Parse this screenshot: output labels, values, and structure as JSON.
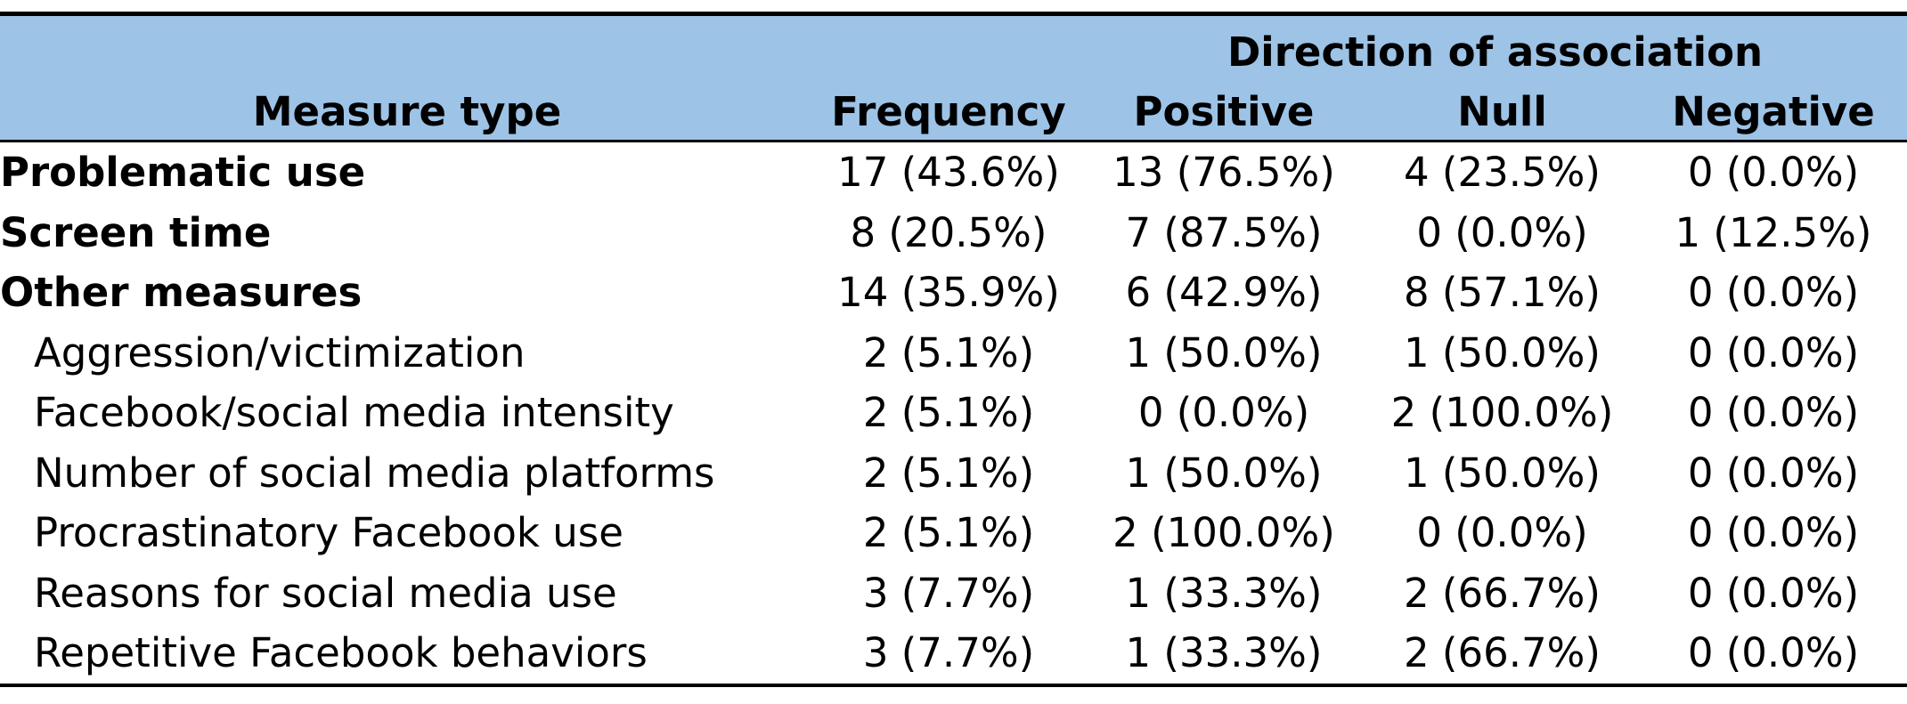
{
  "header": {
    "group_label": "Direction of association",
    "columns": [
      "Measure type",
      "Frequency",
      "Positive",
      "Null",
      "Negative"
    ]
  },
  "rows": [
    {
      "label": "Problematic use",
      "frequency": "17 (43.6%)",
      "positive": "13 (76.5%)",
      "null": "4 (23.5%)",
      "negative": "0 (0.0%)",
      "bold": true
    },
    {
      "label": "Screen time",
      "frequency": "8 (20.5%)",
      "positive": "7 (87.5%)",
      "null": "0 (0.0%)",
      "negative": "1 (12.5%)",
      "bold": true
    },
    {
      "label": "Other measures",
      "frequency": "14 (35.9%)",
      "positive": "6 (42.9%)",
      "null": "8 (57.1%)",
      "negative": "0 (0.0%)",
      "bold": true
    },
    {
      "label": "Aggression/victimization",
      "frequency": "2 (5.1%)",
      "positive": "1 (50.0%)",
      "null": "1 (50.0%)",
      "negative": "0 (0.0%)",
      "bold": false
    },
    {
      "label": "Facebook/social media intensity",
      "frequency": "2 (5.1%)",
      "positive": "0 (0.0%)",
      "null": "2 (100.0%)",
      "negative": "0 (0.0%)",
      "bold": false
    },
    {
      "label": "Number of social media platforms",
      "frequency": "2 (5.1%)",
      "positive": "1 (50.0%)",
      "null": "1 (50.0%)",
      "negative": "0 (0.0%)",
      "bold": false
    },
    {
      "label": "Procrastinatory Facebook use",
      "frequency": "2 (5.1%)",
      "positive": "2 (100.0%)",
      "null": "0 (0.0%)",
      "negative": "0 (0.0%)",
      "bold": false
    },
    {
      "label": "Reasons for social media use",
      "frequency": "3 (7.7%)",
      "positive": "1 (33.3%)",
      "null": "2 (66.7%)",
      "negative": "0 (0.0%)",
      "bold": false
    },
    {
      "label": "Repetitive Facebook behaviors",
      "frequency": "3 (7.7%)",
      "positive": "1 (33.3%)",
      "null": "2 (66.7%)",
      "negative": "0 (0.0%)",
      "bold": false
    }
  ],
  "colors": {
    "header_background": "#9dc3e6",
    "rules": "#000000"
  }
}
